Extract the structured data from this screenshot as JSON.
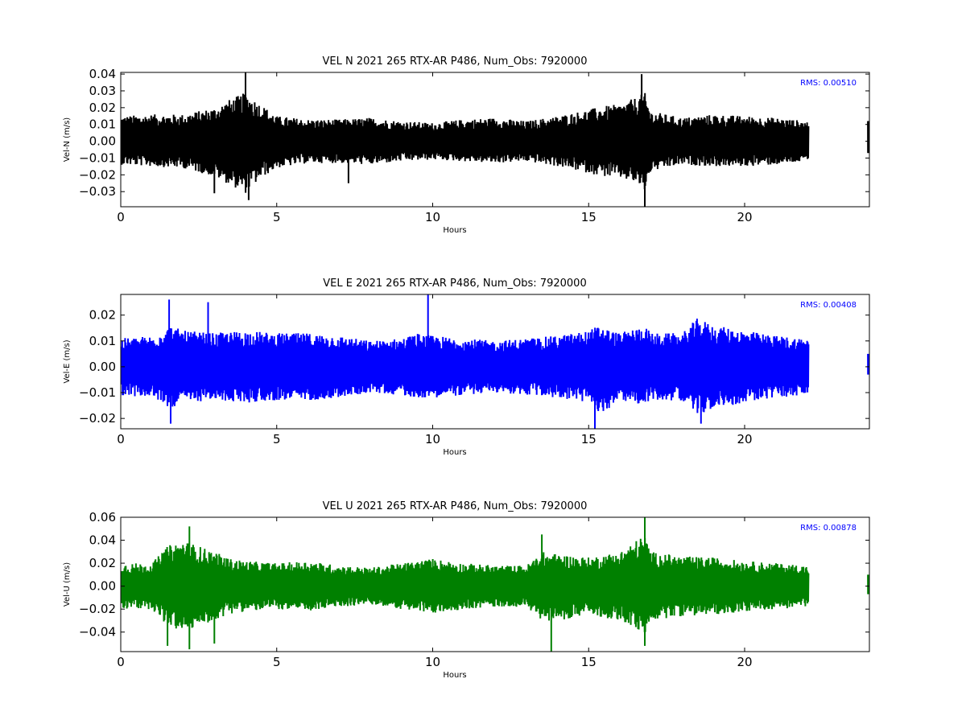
{
  "chart_data": [
    {
      "type": "line",
      "title": "VEL N 2021 265 RTX-AR  P486, Num_Obs: 7920000",
      "xlabel": "Hours",
      "ylabel": "Vel-N (m/s)",
      "annotation": "RMS:  0.00510",
      "annotation_color": "#0000ff",
      "color": "#000000",
      "xlim": [
        0,
        24
      ],
      "ylim": [
        -0.039,
        0.041
      ],
      "xticks": [
        0,
        5,
        10,
        15,
        20
      ],
      "xtick_labels": [
        "0",
        "5",
        "10",
        "15",
        "20"
      ],
      "yticks": [
        -0.03,
        -0.02,
        -0.01,
        0.0,
        0.01,
        0.02,
        0.03,
        0.04
      ],
      "ytick_labels": [
        "−0.03",
        "−0.02",
        "−0.01",
        "0.00",
        "0.01",
        "0.02",
        "0.03",
        "0.04"
      ],
      "data_range_hours": [
        0,
        22.05
      ],
      "late_segment_hours": [
        23.95,
        24.0
      ],
      "late_segment_range": [
        -0.007,
        0.012
      ],
      "envelope": {
        "hours": [
          0,
          1,
          2,
          3,
          3.5,
          4,
          4.5,
          5,
          6,
          7,
          8,
          9,
          10,
          11,
          12,
          13,
          14,
          15,
          15.5,
          16,
          16.5,
          16.8,
          17,
          18,
          19,
          20,
          21,
          22
        ],
        "max": [
          0.015,
          0.016,
          0.016,
          0.02,
          0.025,
          0.029,
          0.022,
          0.015,
          0.013,
          0.013,
          0.014,
          0.012,
          0.011,
          0.013,
          0.014,
          0.012,
          0.015,
          0.019,
          0.021,
          0.022,
          0.026,
          0.029,
          0.018,
          0.014,
          0.016,
          0.015,
          0.014,
          0.012
        ],
        "min": [
          -0.014,
          -0.015,
          -0.016,
          -0.021,
          -0.026,
          -0.031,
          -0.022,
          -0.016,
          -0.013,
          -0.013,
          -0.014,
          -0.012,
          -0.011,
          -0.012,
          -0.013,
          -0.012,
          -0.015,
          -0.019,
          -0.021,
          -0.022,
          -0.025,
          -0.03,
          -0.018,
          -0.014,
          -0.015,
          -0.015,
          -0.014,
          -0.012
        ]
      },
      "spikes": [
        {
          "hour": 4.0,
          "value": 0.041
        },
        {
          "hour": 4.1,
          "value": -0.035
        },
        {
          "hour": 3.0,
          "value": -0.031
        },
        {
          "hour": 16.7,
          "value": 0.04
        },
        {
          "hour": 16.8,
          "value": -0.039
        },
        {
          "hour": 7.3,
          "value": -0.025
        }
      ]
    },
    {
      "type": "line",
      "title": "VEL E 2021 265 RTX-AR  P486, Num_Obs: 7920000",
      "xlabel": "Hours",
      "ylabel": "Vel-E (m/s)",
      "annotation": "RMS:  0.00408",
      "annotation_color": "#0000ff",
      "color": "#0000ff",
      "xlim": [
        0,
        24
      ],
      "ylim": [
        -0.024,
        0.028
      ],
      "xticks": [
        0,
        5,
        10,
        15,
        20
      ],
      "xtick_labels": [
        "0",
        "5",
        "10",
        "15",
        "20"
      ],
      "yticks": [
        -0.02,
        -0.01,
        0.0,
        0.01,
        0.02
      ],
      "ytick_labels": [
        "−0.02",
        "−0.01",
        "0.00",
        "0.01",
        "0.02"
      ],
      "data_range_hours": [
        0,
        22.05
      ],
      "late_segment_hours": [
        23.95,
        24.0
      ],
      "late_segment_range": [
        -0.003,
        0.005
      ],
      "envelope": {
        "hours": [
          0,
          1,
          1.6,
          2,
          3,
          4,
          5,
          6,
          7,
          8,
          9,
          9.5,
          10,
          11,
          12,
          13,
          14,
          15,
          15.3,
          16,
          16.8,
          17,
          18,
          18.5,
          19,
          20,
          21,
          22
        ],
        "max": [
          0.011,
          0.012,
          0.016,
          0.014,
          0.013,
          0.014,
          0.013,
          0.013,
          0.012,
          0.01,
          0.011,
          0.013,
          0.012,
          0.011,
          0.01,
          0.011,
          0.012,
          0.014,
          0.016,
          0.013,
          0.016,
          0.013,
          0.013,
          0.019,
          0.016,
          0.014,
          0.012,
          0.011
        ],
        "min": [
          -0.011,
          -0.012,
          -0.016,
          -0.014,
          -0.013,
          -0.014,
          -0.013,
          -0.013,
          -0.012,
          -0.01,
          -0.011,
          -0.012,
          -0.012,
          -0.011,
          -0.01,
          -0.011,
          -0.012,
          -0.014,
          -0.019,
          -0.013,
          -0.015,
          -0.013,
          -0.013,
          -0.019,
          -0.016,
          -0.014,
          -0.012,
          -0.011
        ]
      },
      "spikes": [
        {
          "hour": 1.55,
          "value": 0.026
        },
        {
          "hour": 9.85,
          "value": 0.028
        },
        {
          "hour": 15.2,
          "value": -0.024
        },
        {
          "hour": 1.6,
          "value": -0.022
        },
        {
          "hour": 18.6,
          "value": -0.022
        },
        {
          "hour": 2.8,
          "value": 0.025
        }
      ]
    },
    {
      "type": "line",
      "title": "VEL U 2021 265 RTX-AR  P486, Num_Obs: 7920000",
      "xlabel": "Hours",
      "ylabel": "Vel-U (m/s)",
      "annotation": "RMS:  0.00878",
      "annotation_color": "#0000ff",
      "color": "#008000",
      "xlim": [
        0,
        24
      ],
      "ylim": [
        -0.057,
        0.06
      ],
      "xticks": [
        0,
        5,
        10,
        15,
        20
      ],
      "xtick_labels": [
        "0",
        "5",
        "10",
        "15",
        "20"
      ],
      "yticks": [
        -0.04,
        -0.02,
        0.0,
        0.02,
        0.04,
        0.06
      ],
      "ytick_labels": [
        "−0.04",
        "−0.02",
        "0.00",
        "0.02",
        "0.04",
        "0.06"
      ],
      "data_range_hours": [
        0,
        22.05
      ],
      "late_segment_hours": [
        23.95,
        24.0
      ],
      "late_segment_range": [
        -0.007,
        0.01
      ],
      "envelope": {
        "hours": [
          0,
          1,
          1.5,
          2,
          2.5,
          3,
          3.5,
          4,
          5,
          6,
          7,
          8,
          9,
          10,
          11,
          12,
          13,
          13.5,
          14,
          15,
          16,
          16.8,
          17,
          18,
          19,
          20,
          21,
          22
        ],
        "max": [
          0.02,
          0.02,
          0.035,
          0.04,
          0.035,
          0.03,
          0.024,
          0.022,
          0.02,
          0.022,
          0.018,
          0.016,
          0.02,
          0.024,
          0.02,
          0.018,
          0.018,
          0.03,
          0.028,
          0.025,
          0.03,
          0.045,
          0.03,
          0.026,
          0.025,
          0.022,
          0.02,
          0.018
        ],
        "min": [
          -0.02,
          -0.02,
          -0.035,
          -0.04,
          -0.035,
          -0.03,
          -0.024,
          -0.022,
          -0.02,
          -0.022,
          -0.018,
          -0.016,
          -0.02,
          -0.024,
          -0.02,
          -0.018,
          -0.018,
          -0.03,
          -0.03,
          -0.025,
          -0.03,
          -0.042,
          -0.03,
          -0.026,
          -0.025,
          -0.022,
          -0.02,
          -0.018
        ]
      },
      "spikes": [
        {
          "hour": 2.2,
          "value": 0.052
        },
        {
          "hour": 2.2,
          "value": -0.055
        },
        {
          "hour": 1.5,
          "value": -0.052
        },
        {
          "hour": 3.0,
          "value": -0.05
        },
        {
          "hour": 13.8,
          "value": -0.057
        },
        {
          "hour": 16.8,
          "value": 0.06
        },
        {
          "hour": 16.8,
          "value": -0.052
        },
        {
          "hour": 13.5,
          "value": 0.045
        }
      ]
    }
  ]
}
